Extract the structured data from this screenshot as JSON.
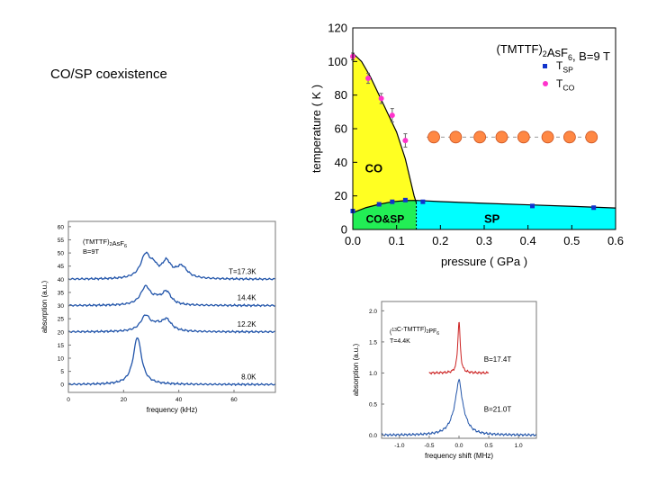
{
  "slide": {
    "title": "CO/SP coexistence"
  },
  "colors": {
    "co_region": "#ffff22",
    "coexist_region": "#22ee55",
    "sp_region": "#00ffff",
    "t_sp": "#1133cc",
    "t_co": "#ff33cc",
    "orange_marker": "#ff8844",
    "nmr_trace": "#2255aa",
    "esr_red": "#cc2222",
    "esr_blue": "#2255aa"
  },
  "chart_data": [
    {
      "id": "phase-diagram",
      "type": "scatter",
      "title": "(TMTTF)2AsF6, B=9 T",
      "xlabel": "pressure ( GPa )",
      "ylabel": "temperature ( K )",
      "xlim": [
        0,
        0.6
      ],
      "ylim": [
        0,
        120
      ],
      "xticks": [
        0,
        0.1,
        0.2,
        0.3,
        0.4,
        0.5,
        0.6
      ],
      "xtick_labels": [
        "0.0",
        "0.1",
        "0.2",
        "0.3",
        "0.4",
        "0.5",
        "0.6"
      ],
      "yticks": [
        0,
        20,
        40,
        60,
        80,
        100,
        120
      ],
      "ytick_labels": [
        "0",
        "20",
        "40",
        "60",
        "80",
        "100",
        "120"
      ],
      "legend": [
        {
          "symbol": "square",
          "label": "T_SP",
          "text": "T",
          "sub": "SP"
        },
        {
          "symbol": "circle",
          "label": "T_CO",
          "text": "T",
          "sub": "CO"
        }
      ],
      "region_labels": {
        "co": "CO",
        "coexist": "CO&SP",
        "sp": "SP"
      },
      "series": [
        {
          "name": "T_SP",
          "x": [
            0.0,
            0.06,
            0.09,
            0.12,
            0.16,
            0.41,
            0.55
          ],
          "y": [
            11,
            15,
            16.5,
            17.5,
            16.5,
            14,
            13
          ]
        },
        {
          "name": "T_CO",
          "x": [
            0.0,
            0.035,
            0.065,
            0.09,
            0.12
          ],
          "y": [
            103,
            90,
            78,
            68,
            53
          ],
          "yerr": [
            2,
            3,
            3,
            4,
            4
          ]
        }
      ],
      "co_boundary": {
        "x": [
          0.0,
          0.02,
          0.04,
          0.06,
          0.08,
          0.1,
          0.12,
          0.14,
          0.145
        ],
        "y": [
          105,
          100,
          91,
          80,
          69,
          58,
          42,
          20,
          16
        ]
      },
      "sp_boundary": {
        "x": [
          0.0,
          0.03,
          0.06,
          0.09,
          0.12,
          0.145,
          0.2,
          0.3,
          0.4,
          0.5,
          0.6
        ],
        "y": [
          10,
          13,
          15,
          16.5,
          17.2,
          17.3,
          16.6,
          15.6,
          14.7,
          13.8,
          12.8
        ]
      },
      "coexist_right_edge": 0.145,
      "overlay_circles": {
        "x": [
          0.185,
          0.235,
          0.29,
          0.34,
          0.39,
          0.445,
          0.495,
          0.545
        ],
        "y": 55
      }
    },
    {
      "id": "nmr-spectra",
      "type": "line",
      "title_text": "(TMTTF)",
      "title_sub1": "2",
      "title_text2": "AsF",
      "title_sub2": "6",
      "title_line2": "B=9T",
      "xlabel": "frequency (kHz)",
      "ylabel": "absorption (a.u.)",
      "xlim": [
        0,
        75
      ],
      "ylim": [
        -3,
        62
      ],
      "xticks": [
        0,
        20,
        40,
        60
      ],
      "xtick_labels": [
        "0",
        "20",
        "40",
        "60"
      ],
      "yticks": [
        0,
        5,
        10,
        15,
        20,
        25,
        30,
        35,
        40,
        45,
        50,
        55,
        60
      ],
      "ytick_labels": [
        "0",
        "5",
        "10",
        "15",
        "20",
        "25",
        "30",
        "35",
        "40",
        "45",
        "50",
        "55",
        "60"
      ],
      "series": [
        {
          "name": "T=17.3K",
          "offset": 40,
          "peaks": [
            [
              28,
              9,
              2.2
            ],
            [
              35.5,
              6,
              2.0
            ],
            [
              41,
              4.5,
              2.5
            ],
            [
              31,
              3,
              1.5
            ]
          ]
        },
        {
          "name": "14.4K",
          "offset": 30,
          "peaks": [
            [
              28,
              7,
              2.2
            ],
            [
              35.5,
              5,
              2.0
            ],
            [
              32,
              1.5,
              1.5
            ]
          ]
        },
        {
          "name": "12.2K",
          "offset": 20,
          "peaks": [
            [
              28,
              6,
              2.2
            ],
            [
              35.5,
              4.5,
              2.2
            ],
            [
              32,
              1.5,
              1.5
            ]
          ]
        },
        {
          "name": "8.0K",
          "offset": 0,
          "peaks": [
            [
              25,
              18,
              1.8
            ]
          ]
        }
      ]
    },
    {
      "id": "esr-spectra",
      "type": "line",
      "title_text": "(",
      "title_sup": "13",
      "title_text2": "C-TMTTF)",
      "title_sub1": "2",
      "title_text3": "PF",
      "title_sub2": "6",
      "title_line2": "T=4.4K",
      "xlabel": "frequency shift (MHz)",
      "ylabel": "absorption (a.u.)",
      "xlim": [
        -1.3,
        1.3
      ],
      "ylim": [
        -0.05,
        2.15
      ],
      "xticks": [
        -1.0,
        -0.5,
        0.0,
        0.5,
        1.0
      ],
      "xtick_labels": [
        "-1.0",
        "-0.5",
        "0.0",
        "0.5",
        "1.0"
      ],
      "yticks": [
        0.0,
        0.5,
        1.0,
        1.5,
        2.0
      ],
      "ytick_labels": [
        "0.0",
        "0.5",
        "1.0",
        "1.5",
        "2.0"
      ],
      "series": [
        {
          "name": "B=17.4T",
          "color": "red",
          "offset": 1.0,
          "x_range": [
            -0.5,
            0.5
          ],
          "peaks": [
            [
              0.0,
              0.82,
              0.025
            ]
          ]
        },
        {
          "name": "B=21.0T",
          "color": "blue",
          "offset": 0.0,
          "x_range": [
            -1.3,
            1.3
          ],
          "peaks": [
            [
              0.0,
              0.65,
              0.06
            ],
            [
              -0.06,
              0.2,
              0.12
            ],
            [
              0.08,
              0.12,
              0.1
            ]
          ]
        }
      ]
    }
  ]
}
